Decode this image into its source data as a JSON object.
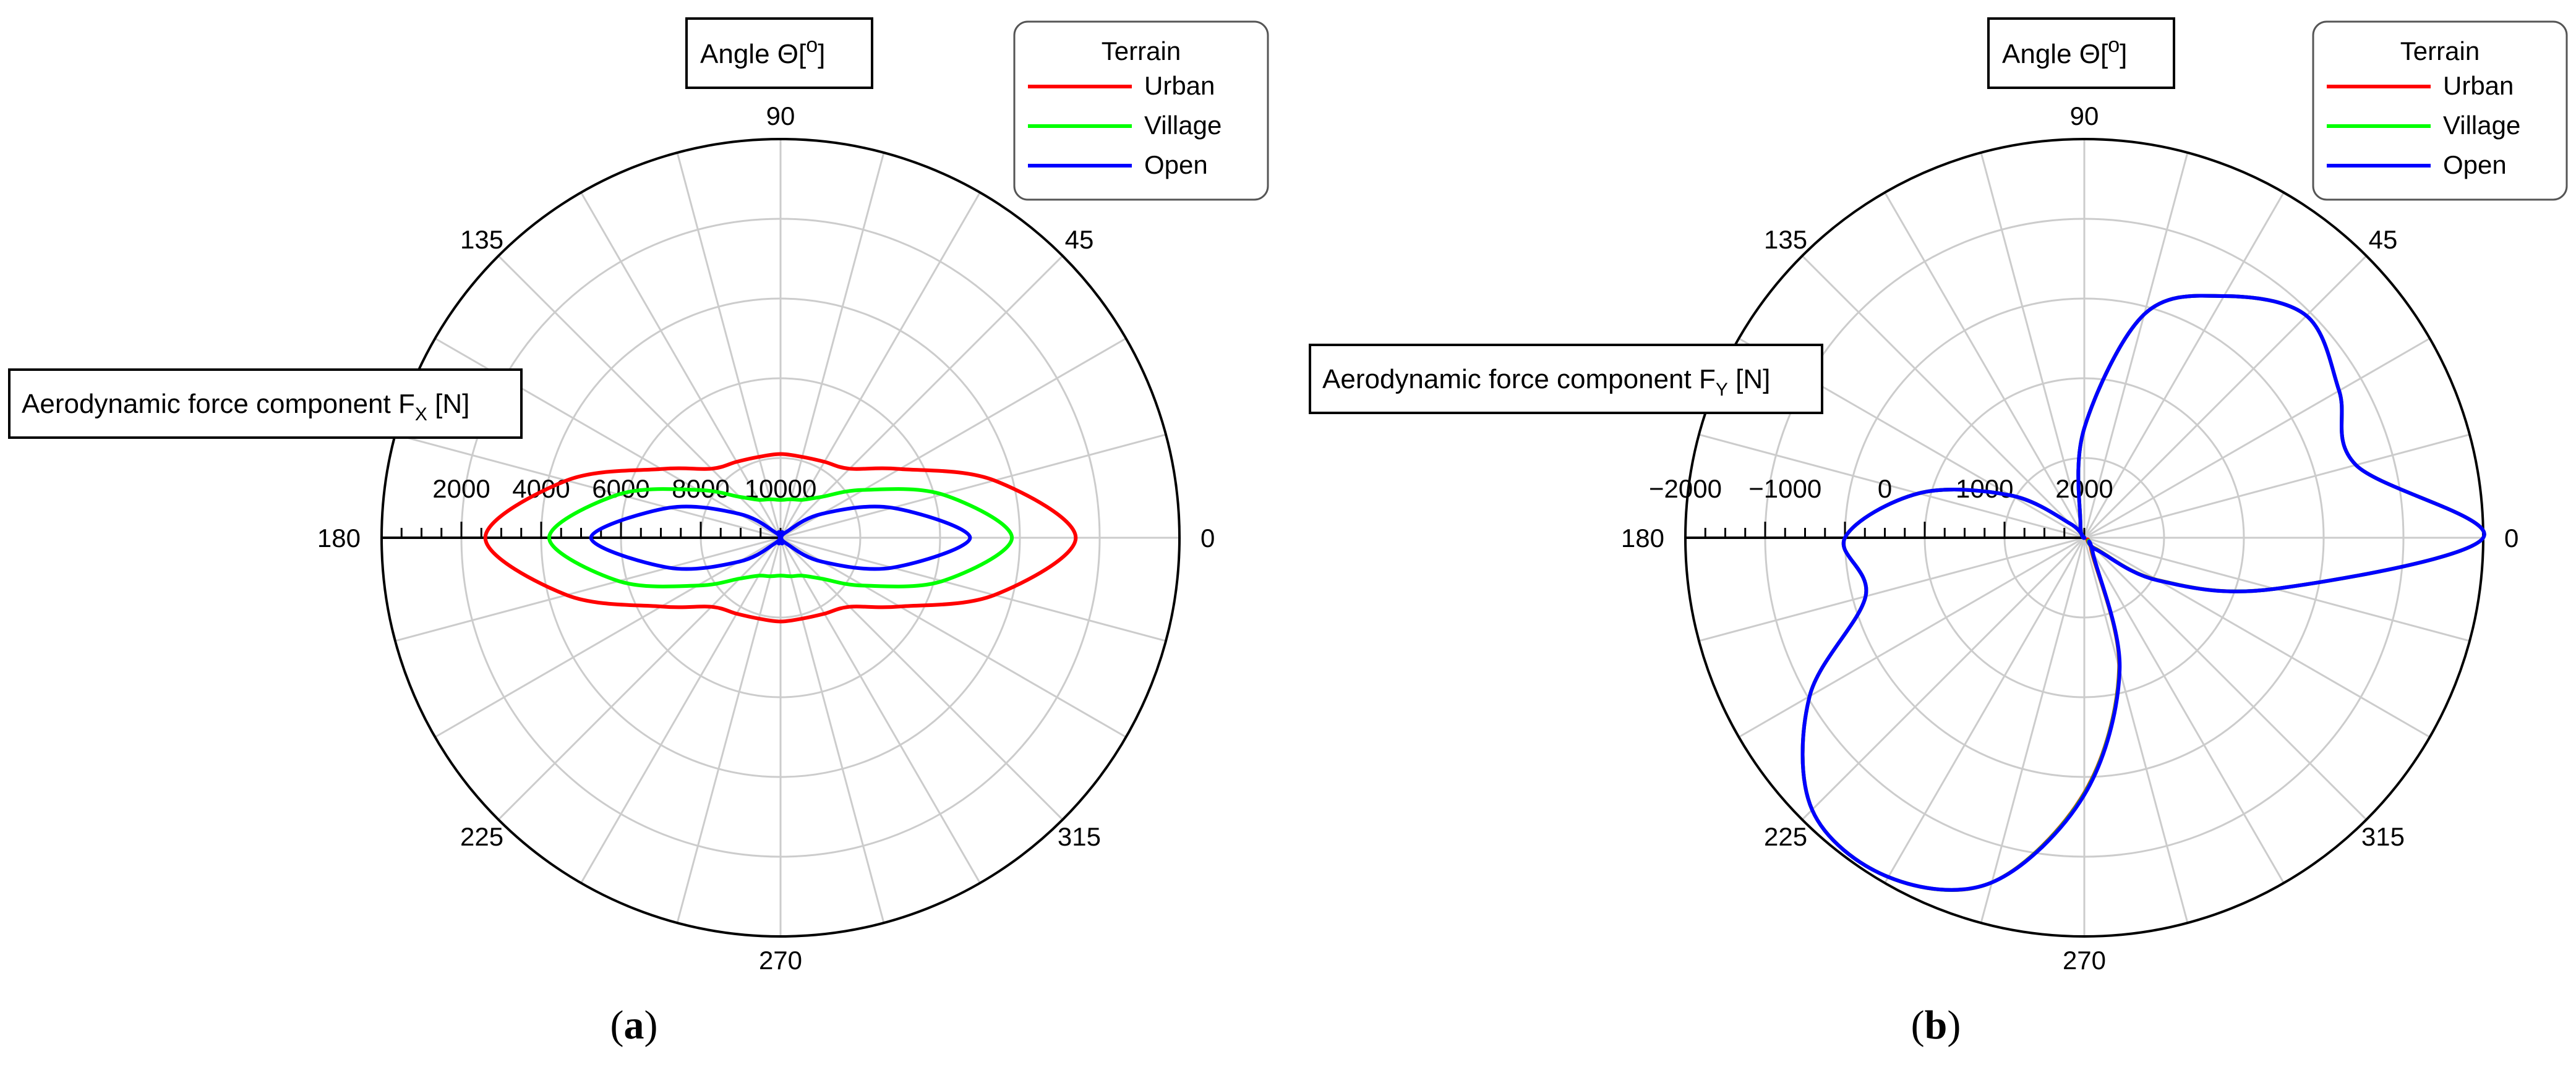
{
  "chart_data": [
    {
      "type": "polar-line",
      "panel_label": "(a)",
      "panel_letter": "a",
      "title": "Angle Θ[",
      "title_degree": "o",
      "radial_label_main": "Aerodynamic force component F",
      "radial_label_sub": "X",
      "radial_label_unit": " [N]",
      "radial_range": [
        0,
        10000
      ],
      "radial_direction": "reversed",
      "radial_tick_values": [
        10000,
        8000,
        6000,
        4000,
        2000
      ],
      "radial_tick_labels": [
        "10000",
        "8000",
        "6000",
        "4000",
        "2000"
      ],
      "angular_ticks_deg": [
        0,
        45,
        90,
        135,
        180,
        225,
        270,
        315
      ],
      "angular_tick_labels": [
        "0",
        "45",
        "90",
        "135",
        "180",
        "225",
        "270",
        "315"
      ],
      "legend_title": "Terrain",
      "series": [
        {
          "name": "Urban",
          "color": "#ff0000",
          "angles_deg": [
            0,
            15,
            30,
            45,
            60,
            75,
            90,
            105,
            120,
            135,
            150,
            165,
            180,
            195,
            210,
            225,
            240,
            255,
            270,
            285,
            300,
            315,
            330,
            345
          ],
          "values": [
            2600,
            4450,
            6550,
            7550,
            7800,
            7900,
            7900,
            7900,
            7800,
            7550,
            6550,
            4450,
            2600,
            4450,
            6550,
            7550,
            7800,
            7900,
            7900,
            7900,
            7800,
            7550,
            6550,
            4450
          ]
        },
        {
          "name": "Village",
          "color": "#00ff00",
          "angles_deg": [
            0,
            15,
            30,
            45,
            60,
            75,
            90,
            105,
            120,
            135,
            150,
            165,
            180,
            195,
            210,
            225,
            240,
            255,
            270,
            285,
            300,
            315,
            330,
            345
          ],
          "values": [
            4200,
            5800,
            7600,
            8550,
            8900,
            9000,
            9050,
            9000,
            8900,
            8550,
            7600,
            5800,
            4200,
            5800,
            7600,
            8550,
            8900,
            9000,
            9050,
            9000,
            8900,
            8550,
            7600,
            5800
          ]
        },
        {
          "name": "Open",
          "color": "#0000ff",
          "angles_deg": [
            0,
            15,
            30,
            45,
            60,
            75,
            90,
            105,
            120,
            135,
            150,
            165,
            180,
            195,
            210,
            225,
            240,
            255,
            270,
            285,
            300,
            315,
            330,
            345
          ],
          "values": [
            5250,
            7100,
            8800,
            9800,
            10100,
            10150,
            10100,
            10150,
            10100,
            9800,
            8800,
            7100,
            5250,
            7100,
            8800,
            9800,
            10100,
            10150,
            10100,
            10150,
            10100,
            9800,
            8800,
            7100
          ]
        }
      ]
    },
    {
      "type": "polar-line",
      "panel_label": "(b)",
      "panel_letter": "b",
      "title": "Angle Θ[",
      "title_degree": "o",
      "radial_label_main": "Aerodynamic force component F",
      "radial_label_sub": "Y",
      "radial_label_unit": " [N]",
      "radial_range": [
        -2000,
        2000
      ],
      "radial_direction": "reversed",
      "radial_tick_values": [
        2000,
        1000,
        0,
        -1000,
        -2000
      ],
      "radial_tick_labels": [
        "2000",
        "1000",
        "0",
        "−1000",
        "−2000"
      ],
      "angular_ticks_deg": [
        0,
        45,
        90,
        135,
        180,
        225,
        270,
        315
      ],
      "angular_tick_labels": [
        "0",
        "45",
        "90",
        "135",
        "180",
        "225",
        "270",
        "315"
      ],
      "legend_title": "Terrain",
      "series": [
        {
          "name": "Urban",
          "color": "#ff0000",
          "angles_deg": [
            0,
            15,
            30,
            45,
            60,
            75,
            90,
            105,
            120,
            135,
            150,
            165,
            180,
            195,
            210,
            225,
            240,
            255,
            270,
            285,
            300,
            315,
            330,
            345
          ],
          "values": [
            -2000,
            -820,
            -950,
            -1150,
            -800,
            -320,
            900,
            1850,
            2000,
            1800,
            1150,
            280,
            -400,
            -270,
            -1180,
            -1860,
            -1930,
            -1580,
            -560,
            650,
            1860,
            1850,
            1150,
            20
          ]
        },
        {
          "name": "Village",
          "color": "#00ff00",
          "angles_deg": [
            0,
            15,
            30,
            45,
            60,
            75,
            90,
            105,
            120,
            135,
            150,
            165,
            180,
            195,
            210,
            225,
            240,
            255,
            270,
            285,
            300,
            315,
            330,
            345
          ],
          "values": [
            -2000,
            -820,
            -950,
            -1150,
            -800,
            -320,
            900,
            1850,
            2000,
            1800,
            1150,
            280,
            -400,
            -270,
            -1180,
            -1860,
            -1930,
            -1580,
            -570,
            640,
            1840,
            1840,
            1145,
            20
          ]
        },
        {
          "name": "Open",
          "color": "#0000ff",
          "angles_deg": [
            0,
            15,
            30,
            45,
            60,
            75,
            90,
            105,
            120,
            135,
            150,
            165,
            180,
            195,
            210,
            225,
            240,
            255,
            270,
            285,
            300,
            315,
            330,
            345
          ],
          "values": [
            -2000,
            -820,
            -950,
            -1150,
            -800,
            -320,
            900,
            1850,
            2000,
            1800,
            1150,
            280,
            -400,
            -270,
            -1180,
            -1860,
            -1930,
            -1580,
            -580,
            630,
            1830,
            1830,
            1140,
            20
          ]
        }
      ]
    }
  ]
}
